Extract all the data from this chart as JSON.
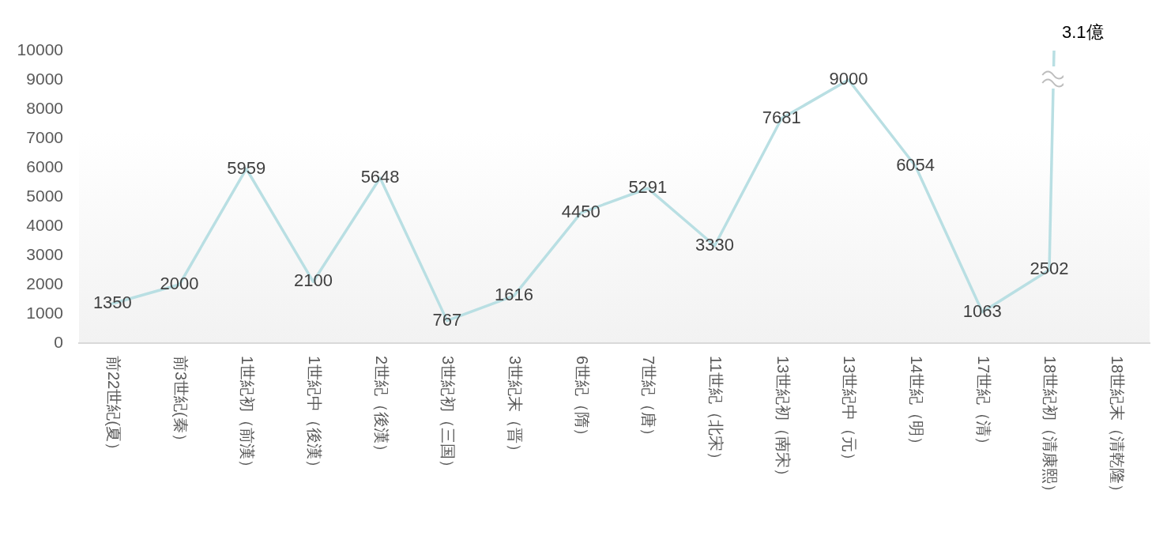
{
  "chart_data": {
    "type": "line",
    "categories": [
      "前22世紀(夏）",
      "前3世紀(秦）",
      "1世紀初（前漢）",
      "1世紀中（後漢）",
      "2世紀（後漢）",
      "3世紀初（三国）",
      "3世紀末（晋）",
      "6世紀（隋）",
      "7世紀（唐）",
      "11世紀（北宋）",
      "13世紀初（南宋）",
      "13世紀中（元）",
      "14世紀（明）",
      "17世紀（清）",
      "18世紀初（清康熙）",
      "18世紀末（清乾隆）"
    ],
    "values": [
      1350,
      2000,
      5959,
      2100,
      5648,
      767,
      1616,
      4450,
      5291,
      3330,
      7681,
      9000,
      6054,
      1063,
      2502,
      null
    ],
    "value_labels": [
      "1350",
      "2000",
      "5959",
      "2100",
      "5648",
      "767",
      "1616",
      "4450",
      "5291",
      "3330",
      "7681",
      "9000",
      "6054",
      "1063",
      "2502",
      null
    ],
    "color": "#b9dfe3",
    "annotations": [
      {
        "text": "3.1億",
        "x": "18世紀初（清康熙）",
        "y": 2502
      }
    ],
    "ylim": [
      0,
      10000
    ],
    "yticks": [
      0,
      1000,
      2000,
      3000,
      4000,
      5000,
      6000,
      7000,
      8000,
      9000,
      10000
    ],
    "marker": "none",
    "line_style": "solid"
  }
}
